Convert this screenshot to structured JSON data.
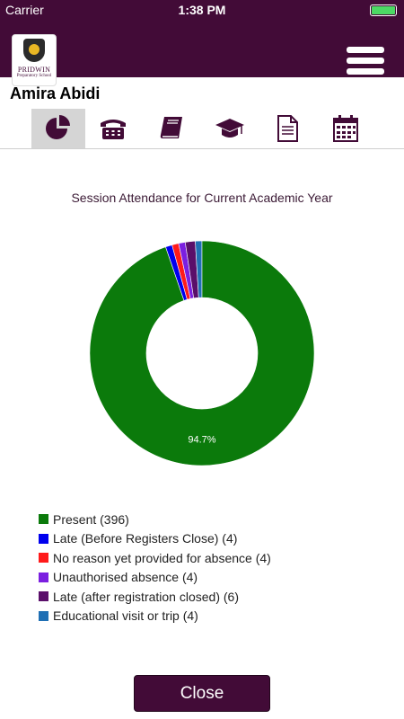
{
  "status_bar": {
    "carrier": "Carrier",
    "time": "1:38 PM"
  },
  "header": {
    "logo_name": "PRIDWIN",
    "logo_sub": "Preparatory School"
  },
  "student": {
    "name": "Amira Abidi"
  },
  "tabs": [
    {
      "icon": "pie-chart-icon",
      "active": true
    },
    {
      "icon": "telephone-icon",
      "active": false
    },
    {
      "icon": "book-icon",
      "active": false
    },
    {
      "icon": "graduation-cap-icon",
      "active": false
    },
    {
      "icon": "document-icon",
      "active": false
    },
    {
      "icon": "calendar-icon",
      "active": false
    }
  ],
  "chart_data": {
    "type": "pie",
    "title": "Session Attendance for Current Academic Year",
    "donut": true,
    "categories": [
      "Present",
      "Late (Before Registers Close)",
      "No reason yet provided for absence",
      "Unauthorised absence",
      "Late (after registration closed)",
      "Educational visit or trip"
    ],
    "values": [
      396,
      4,
      4,
      4,
      6,
      4
    ],
    "colors": [
      "#0b7a0b",
      "#0000ee",
      "#ff1a1a",
      "#7b1fe0",
      "#5a0f6a",
      "#1f6fb4"
    ],
    "data_labels": [
      "94.7%",
      "",
      "",
      "",
      "",
      ""
    ],
    "legend_labels": [
      "Present (396)",
      "Late (Before Registers Close) (4)",
      "No reason yet provided for absence (4)",
      "Unauthorised absence (4)",
      "Late (after registration closed) (6)",
      "Educational visit or trip (4)"
    ],
    "legend_position": "bottom-left"
  },
  "close_button": {
    "label": "Close"
  },
  "colors": {
    "brand": "#420b37",
    "accent_battery": "#4cd964"
  }
}
